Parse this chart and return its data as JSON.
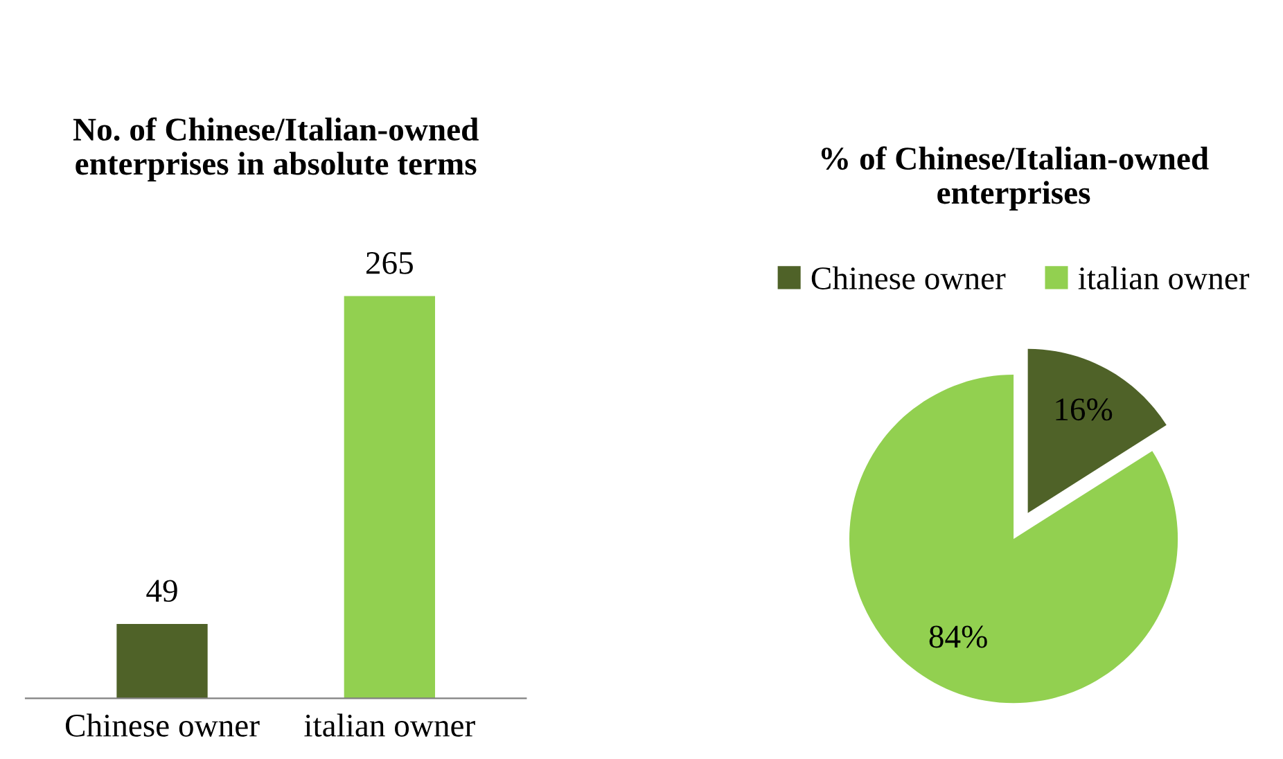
{
  "chart_data": [
    {
      "type": "bar",
      "title": "No. of Chinese/Italian-owned enterprises in absolute terms",
      "categories": [
        "Chinese owner",
        "italian owner"
      ],
      "values": [
        49,
        265
      ],
      "colors": [
        "#4f6228",
        "#92d050"
      ],
      "data_labels": true,
      "grid": false,
      "legend": false
    },
    {
      "type": "pie",
      "title": "% of Chinese/Italian-owned enterprises",
      "categories": [
        "Chinese owner",
        "italian owner"
      ],
      "values": [
        16,
        84
      ],
      "colors": [
        "#4f6228",
        "#92d050"
      ],
      "value_labels": [
        "16%",
        "84%"
      ],
      "legend": "top"
    }
  ]
}
